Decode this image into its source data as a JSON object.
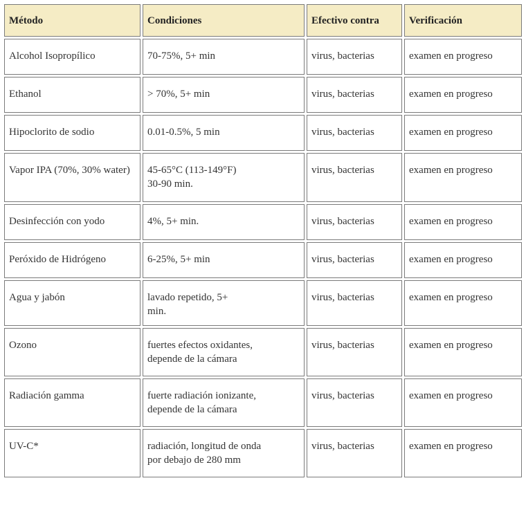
{
  "headers": [
    "Método",
    "Condiciones",
    "Efectivo contra",
    "Verificación"
  ],
  "rows": [
    {
      "method": "Alcohol Isopropílico",
      "conditions": "70-75%, 5+ min",
      "effective": "virus, bacterias",
      "verification": "examen en progreso"
    },
    {
      "method": "Ethanol",
      "conditions": "> 70%, 5+ min",
      "effective": "virus, bacterias",
      "verification": "examen en progreso"
    },
    {
      "method": "Hipoclorito de sodio",
      "conditions": "0.01-0.5%, 5 min",
      "effective": "virus, bacterias",
      "verification": "examen en progreso"
    },
    {
      "method": "Vapor IPA (70%, 30% water)",
      "conditions": "45-65°C (113-149°F)\n30-90 min.",
      "effective": "virus, bacterias",
      "verification": "examen en progreso"
    },
    {
      "method": "Desinfección con yodo",
      "conditions": "4%, 5+ min.",
      "effective": "virus, bacterias",
      "verification": "examen en progreso"
    },
    {
      "method": "Peróxido de Hidrógeno",
      "conditions": "6-25%, 5+ min",
      "effective": "virus, bacterias",
      "verification": "examen en progreso"
    },
    {
      "method": "Agua y jabón",
      "conditions": "lavado repetido, 5+\nmin.",
      "effective": "virus, bacterias",
      "verification": "examen en progreso"
    },
    {
      "method": "Ozono",
      "conditions": "fuertes efectos oxidantes,\ndepende de la cámara",
      "effective": "virus, bacterias",
      "verification": "examen en progreso"
    },
    {
      "method": "Radiación gamma",
      "conditions": "fuerte radiación ionizante,\ndepende de la cámara",
      "effective": "virus, bacterias",
      "verification": "examen en progreso"
    },
    {
      "method": "UV-C*",
      "conditions": "radiación, longitud de onda\npor debajo de 280 mm",
      "effective": "virus, bacterias",
      "verification": "examen en progreso"
    }
  ]
}
